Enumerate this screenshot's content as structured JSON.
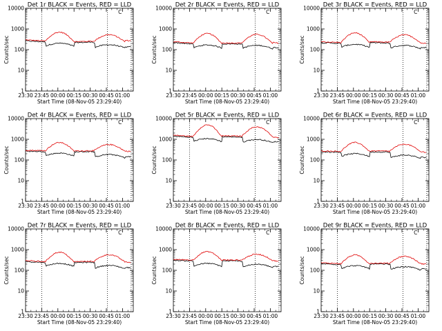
{
  "chart_data": [
    {
      "type": "line",
      "title": "Det 1r BLACK = Events, RED = LLD",
      "xlabel": "Start Time (08-Nov-05 23:29:40)",
      "ylabel": "Counts/sec",
      "yscale": "log",
      "ylim": [
        1,
        10000
      ],
      "x_tick_labels": [
        "23:30",
        "23:45",
        "00:00",
        "00:15",
        "00:30",
        "00:45",
        "01:00"
      ],
      "y_tick_labels": [
        "1",
        "10",
        "100",
        "1000",
        "10000"
      ],
      "base": [
        280,
        250,
        230,
        245,
        270
      ],
      "peak": [
        700,
        530
      ],
      "dip": [
        170,
        150
      ],
      "markers": [
        2,
        10
      ]
    },
    {
      "type": "line",
      "title": "Det 2r BLACK = Events, RED = LLD",
      "xlabel": "Start Time (08-Nov-05 23:29:40)",
      "ylabel": "Counts/sec",
      "yscale": "log",
      "ylim": [
        1,
        10000
      ],
      "x_tick_labels": [
        "23:30",
        "23:45",
        "00:00",
        "00:15",
        "00:30",
        "00:45",
        "01:00"
      ],
      "y_tick_labels": [
        "1",
        "10",
        "100",
        "1000",
        "10000"
      ],
      "base": [
        230,
        200,
        200,
        200,
        210
      ],
      "peak": [
        600,
        550
      ],
      "dip": [
        140,
        140
      ],
      "markers": [
        10
      ]
    },
    {
      "type": "line",
      "title": "Det 3r BLACK = Events, RED = LLD",
      "xlabel": "Start Time (08-Nov-05 23:29:40)",
      "ylabel": "Counts/sec",
      "yscale": "log",
      "ylim": [
        1,
        10000
      ],
      "x_tick_labels": [
        "23:30",
        "23:45",
        "00:00",
        "00:15",
        "00:30",
        "00:45",
        "01:00"
      ],
      "y_tick_labels": [
        "1",
        "10",
        "100",
        "1000",
        "10000"
      ],
      "base": [
        230,
        210,
        230,
        220,
        200
      ],
      "peak": [
        650,
        520
      ],
      "dip": [
        150,
        140
      ],
      "markers": [
        2,
        10
      ]
    },
    {
      "type": "line",
      "title": "Det 4r BLACK = Events, RED = LLD",
      "xlabel": "Start Time (08-Nov-05 23:29:40)",
      "ylabel": "Counts/sec",
      "yscale": "log",
      "ylim": [
        1,
        10000
      ],
      "x_tick_labels": [
        "23:30",
        "23:45",
        "00:00",
        "00:15",
        "00:30",
        "00:45",
        "01:00"
      ],
      "y_tick_labels": [
        "1",
        "10",
        "100",
        "1000",
        "10000"
      ],
      "base": [
        280,
        270,
        260,
        270,
        260
      ],
      "peak": [
        700,
        560
      ],
      "dip": [
        180,
        160
      ],
      "markers": [
        2,
        10
      ]
    },
    {
      "type": "line",
      "title": "Det 5r BLACK = Events, RED = LLD",
      "xlabel": "Start Time (08-Nov-05 23:29:40)",
      "ylabel": "Counts/sec",
      "yscale": "log",
      "ylim": [
        1,
        10000
      ],
      "x_tick_labels": [
        "23:30",
        "23:45",
        "00:00",
        "00:15",
        "00:30",
        "00:45",
        "01:00"
      ],
      "y_tick_labels": [
        "1",
        "10",
        "100",
        "1000",
        "10000"
      ],
      "base": [
        1500,
        1300,
        1400,
        1350,
        1200
      ],
      "peak": [
        5000,
        4000
      ],
      "dip": [
        900,
        850
      ],
      "markers": [
        2,
        10
      ]
    },
    {
      "type": "line",
      "title": "Det 6r BLACK = Events, RED = LLD",
      "xlabel": "Start Time (08-Nov-05 23:29:40)",
      "ylabel": "Counts/sec",
      "yscale": "log",
      "ylim": [
        1,
        10000
      ],
      "x_tick_labels": [
        "23:30",
        "23:45",
        "00:00",
        "00:15",
        "00:30",
        "00:45",
        "01:00"
      ],
      "y_tick_labels": [
        "1",
        "10",
        "100",
        "1000",
        "10000"
      ],
      "base": [
        260,
        250,
        260,
        255,
        240
      ],
      "peak": [
        700,
        580
      ],
      "dip": [
        170,
        150
      ],
      "markers": [
        2,
        10
      ]
    },
    {
      "type": "line",
      "title": "Det 7r BLACK = Events, RED = LLD",
      "xlabel": "Start Time (08-Nov-05 23:29:40)",
      "ylabel": "Counts/sec",
      "yscale": "log",
      "ylim": [
        1,
        10000
      ],
      "x_tick_labels": [
        "23:30",
        "23:45",
        "00:00",
        "00:15",
        "00:30",
        "00:45",
        "01:00"
      ],
      "y_tick_labels": [
        "1",
        "10",
        "100",
        "1000",
        "10000"
      ],
      "base": [
        280,
        250,
        250,
        260,
        240
      ],
      "peak": [
        750,
        570
      ],
      "dip": [
        180,
        150
      ],
      "markers": [
        2,
        10
      ]
    },
    {
      "type": "line",
      "title": "Det 8r BLACK = Events, RED = LLD",
      "xlabel": "Start Time (08-Nov-05 23:29:40)",
      "ylabel": "Counts/sec",
      "yscale": "log",
      "ylim": [
        1,
        10000
      ],
      "x_tick_labels": [
        "23:30",
        "23:45",
        "00:00",
        "00:15",
        "00:30",
        "00:45",
        "01:00"
      ],
      "y_tick_labels": [
        "1",
        "10",
        "100",
        "1000",
        "10000"
      ],
      "base": [
        320,
        300,
        300,
        300,
        280
      ],
      "peak": [
        800,
        600
      ],
      "dip": [
        180,
        170
      ],
      "markers": [
        2,
        10
      ]
    },
    {
      "type": "line",
      "title": "Det 9r BLACK = Events, RED = LLD",
      "xlabel": "Start Time (08-Nov-05 23:29:40)",
      "ylabel": "Counts/sec",
      "yscale": "log",
      "ylim": [
        1,
        10000
      ],
      "x_tick_labels": [
        "23:30",
        "23:45",
        "00:00",
        "00:15",
        "00:30",
        "00:45",
        "01:00"
      ],
      "y_tick_labels": [
        "1",
        "10",
        "100",
        "1000",
        "10000"
      ],
      "base": [
        220,
        200,
        210,
        210,
        200
      ],
      "peak": [
        550,
        480
      ],
      "dip": [
        140,
        130
      ],
      "markers": [
        2,
        10
      ]
    }
  ],
  "colors": {
    "events": "#000000",
    "lld": "#e00000",
    "axis": "#000000"
  },
  "legend_symbol": "C"
}
